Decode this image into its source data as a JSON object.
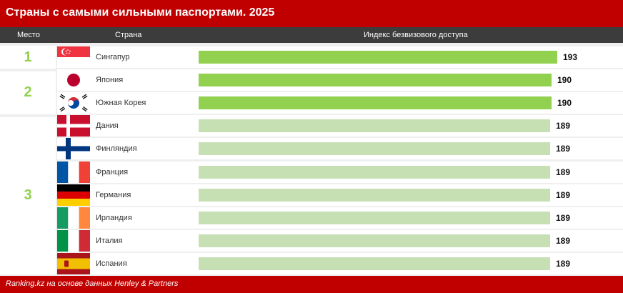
{
  "title": "Страны с самыми сильными паспортами. 2025",
  "headers": {
    "rank": "Место",
    "country": "Страна",
    "index": "Индекс безвизового доступа"
  },
  "footer": "Ranking.kz на основе данных Henley & Partners",
  "ranks": [
    "1",
    "2",
    "3"
  ],
  "colors": {
    "top_bar": "#92d050",
    "other_bar": "#c6e0b4",
    "accent": "#c00000"
  },
  "chart_data": {
    "type": "bar",
    "orientation": "horizontal",
    "categories": [
      "Сингапур",
      "Япония",
      "Южная Корея",
      "Дания",
      "Финляндия",
      "Франция",
      "Германия",
      "Ирландия",
      "Италия",
      "Испания"
    ],
    "values": [
      193,
      190,
      190,
      189,
      189,
      189,
      189,
      189,
      189,
      189
    ],
    "ranks": [
      1,
      2,
      2,
      3,
      3,
      3,
      3,
      3,
      3,
      3
    ],
    "flags": [
      "singapore-flag",
      "japan-flag",
      "south-korea-flag",
      "denmark-flag",
      "finland-flag",
      "france-flag",
      "germany-flag",
      "ireland-flag",
      "italy-flag",
      "spain-flag"
    ],
    "title": "Страны с самыми сильными паспортами. 2025",
    "ylabel": "Индекс безвизового доступа"
  }
}
